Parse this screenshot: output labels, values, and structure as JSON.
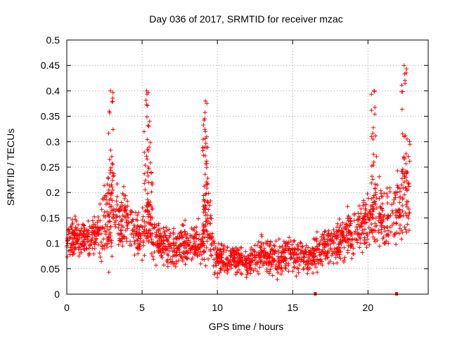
{
  "chart_data": {
    "type": "scatter",
    "title": "Day 036 of 2017, SRMTID for receiver mzac",
    "xlabel": "GPS time / hours",
    "ylabel": "SRMTID / TECUs",
    "xlim": [
      0,
      24
    ],
    "ylim": [
      0,
      0.5
    ],
    "xticks": [
      0,
      5,
      10,
      15,
      20
    ],
    "xtick_labels": [
      "0",
      "5",
      "10",
      "15",
      "20"
    ],
    "yticks": [
      0,
      0.05,
      0.1,
      0.15,
      0.2,
      0.25,
      0.3,
      0.35,
      0.4,
      0.45,
      0.5
    ],
    "ytick_labels": [
      "0",
      "0.05",
      "0.1",
      "0.15",
      "0.2",
      "0.25",
      "0.3",
      "0.35",
      "0.4",
      "0.45",
      "0.5"
    ],
    "grid": true,
    "marker": "plus",
    "color": "#ff0000",
    "series_note": "approx. several thousand points; series below gives the representative trend in hours / TECU",
    "trend": {
      "x": [
        0,
        1,
        2,
        2.8,
        3,
        3.5,
        4,
        4.5,
        5,
        5.4,
        6,
        7,
        8,
        9,
        9.3,
        10,
        11,
        12,
        13,
        14,
        15,
        16,
        17,
        18,
        19,
        20,
        20.4,
        21,
        22,
        22.5
      ],
      "base": [
        0.11,
        0.11,
        0.11,
        0.15,
        0.17,
        0.14,
        0.15,
        0.12,
        0.12,
        0.15,
        0.1,
        0.09,
        0.1,
        0.1,
        0.14,
        0.07,
        0.07,
        0.06,
        0.08,
        0.07,
        0.08,
        0.07,
        0.09,
        0.11,
        0.12,
        0.14,
        0.18,
        0.15,
        0.17,
        0.2
      ],
      "spread": [
        0.04,
        0.04,
        0.04,
        0.1,
        0.1,
        0.06,
        0.07,
        0.05,
        0.05,
        0.08,
        0.04,
        0.04,
        0.04,
        0.04,
        0.08,
        0.035,
        0.035,
        0.03,
        0.035,
        0.035,
        0.035,
        0.035,
        0.04,
        0.05,
        0.05,
        0.06,
        0.1,
        0.06,
        0.07,
        0.12
      ]
    },
    "peaks": [
      {
        "x": 2.9,
        "y": 0.4
      },
      {
        "x": 5.3,
        "y": 0.4
      },
      {
        "x": 5.5,
        "y": 0.34
      },
      {
        "x": 9.2,
        "y": 0.38
      },
      {
        "x": 9.2,
        "y": 0.32
      },
      {
        "x": 20.4,
        "y": 0.4
      },
      {
        "x": 22.4,
        "y": 0.45
      }
    ],
    "zero_markers": [
      {
        "x": 16.5,
        "y": 0
      },
      {
        "x": 21.9,
        "y": 0
      }
    ],
    "data_range": [
      0,
      22.8
    ]
  }
}
